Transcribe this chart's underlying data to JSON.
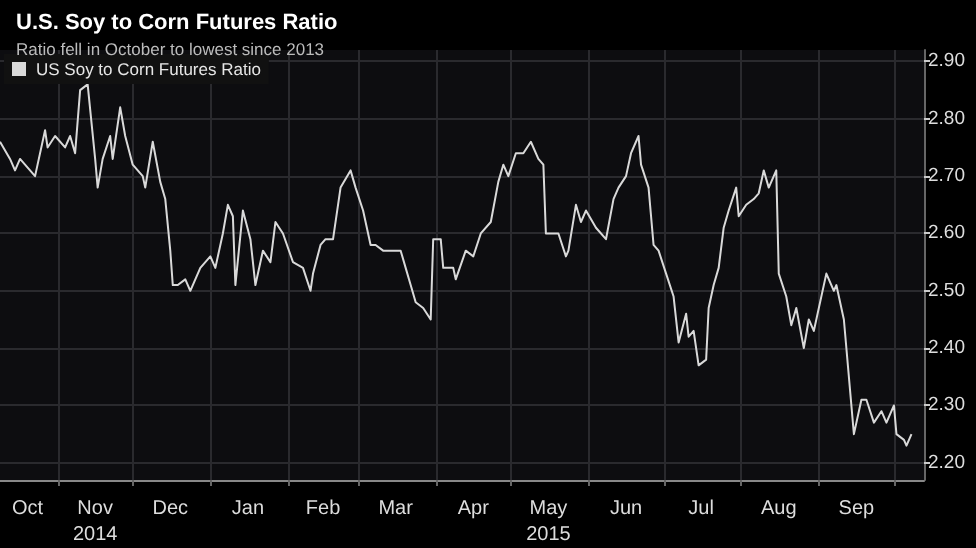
{
  "chart_data": {
    "type": "line",
    "title": "U.S. Soy to Corn Futures Ratio",
    "subtitle": "Ratio fell in October to lowest since 2013",
    "x": [
      "2014-10-09",
      "2014-10-13",
      "2014-10-15",
      "2014-10-17",
      "2014-10-19",
      "2014-10-23",
      "2014-10-27",
      "2014-10-28",
      "2014-10-31",
      "2014-11-04",
      "2014-11-06",
      "2014-11-08",
      "2014-11-10",
      "2014-11-13",
      "2014-11-16",
      "2014-11-17",
      "2014-11-19",
      "2014-11-22",
      "2014-11-23",
      "2014-11-26",
      "2014-11-28",
      "2014-12-01",
      "2014-12-05",
      "2014-12-06",
      "2014-12-09",
      "2014-12-12",
      "2014-12-14",
      "2014-12-16",
      "2014-12-17",
      "2014-12-19",
      "2014-12-22",
      "2014-12-24",
      "2014-12-28",
      "2015-01-01",
      "2015-01-03",
      "2015-01-06",
      "2015-01-08",
      "2015-01-10",
      "2015-01-11",
      "2015-01-14",
      "2015-01-17",
      "2015-01-19",
      "2015-01-22",
      "2015-01-25",
      "2015-01-27",
      "2015-01-30",
      "2015-02-03",
      "2015-02-07",
      "2015-02-10",
      "2015-02-11",
      "2015-02-14",
      "2015-02-16",
      "2015-02-19",
      "2015-02-22",
      "2015-02-26",
      "2015-02-28",
      "2015-03-03",
      "2015-03-06",
      "2015-03-08",
      "2015-03-11",
      "2015-03-14",
      "2015-03-18",
      "2015-03-20",
      "2015-03-22",
      "2015-03-24",
      "2015-03-27",
      "2015-03-30",
      "2015-03-31",
      "2015-04-03",
      "2015-04-04",
      "2015-04-08",
      "2015-04-09",
      "2015-04-13",
      "2015-04-16",
      "2015-04-19",
      "2015-04-23",
      "2015-04-26",
      "2015-04-28",
      "2015-04-30",
      "2015-05-03",
      "2015-05-06",
      "2015-05-09",
      "2015-05-12",
      "2015-05-14",
      "2015-05-15",
      "2015-05-18",
      "2015-05-20",
      "2015-05-23",
      "2015-05-24",
      "2015-05-27",
      "2015-05-29",
      "2015-05-31",
      "2015-06-04",
      "2015-06-08",
      "2015-06-11",
      "2015-06-13",
      "2015-06-16",
      "2015-06-18",
      "2015-06-21",
      "2015-06-22",
      "2015-06-25",
      "2015-06-27",
      "2015-06-29",
      "2015-07-02",
      "2015-07-05",
      "2015-07-07",
      "2015-07-10",
      "2015-07-11",
      "2015-07-13",
      "2015-07-15",
      "2015-07-18",
      "2015-07-19",
      "2015-07-21",
      "2015-07-23",
      "2015-07-25",
      "2015-07-27",
      "2015-07-30",
      "2015-07-31",
      "2015-08-03",
      "2015-08-06",
      "2015-08-08",
      "2015-08-10",
      "2015-08-12",
      "2015-08-15",
      "2015-08-16",
      "2015-08-19",
      "2015-08-21",
      "2015-08-23",
      "2015-08-26",
      "2015-08-28",
      "2015-08-30",
      "2015-09-04",
      "2015-09-07",
      "2015-09-08",
      "2015-09-11",
      "2015-09-15",
      "2015-09-18",
      "2015-09-20",
      "2015-09-23",
      "2015-09-26",
      "2015-09-28",
      "2015-10-01",
      "2015-10-02",
      "2015-10-05",
      "2015-10-06",
      "2015-10-08"
    ],
    "series": [
      {
        "name": "US Soy to Corn Futures Ratio",
        "color": "#d9d9d9",
        "values": [
          2.76,
          2.73,
          2.71,
          2.73,
          2.72,
          2.7,
          2.78,
          2.75,
          2.77,
          2.75,
          2.77,
          2.74,
          2.85,
          2.86,
          2.73,
          2.68,
          2.73,
          2.77,
          2.73,
          2.82,
          2.77,
          2.72,
          2.7,
          2.68,
          2.76,
          2.69,
          2.66,
          2.57,
          2.51,
          2.51,
          2.52,
          2.5,
          2.54,
          2.56,
          2.54,
          2.6,
          2.65,
          2.63,
          2.51,
          2.64,
          2.59,
          2.51,
          2.57,
          2.55,
          2.62,
          2.6,
          2.55,
          2.54,
          2.5,
          2.53,
          2.58,
          2.59,
          2.59,
          2.68,
          2.71,
          2.68,
          2.64,
          2.58,
          2.58,
          2.57,
          2.57,
          2.57,
          2.54,
          2.51,
          2.48,
          2.47,
          2.45,
          2.59,
          2.59,
          2.54,
          2.54,
          2.52,
          2.57,
          2.56,
          2.6,
          2.62,
          2.69,
          2.72,
          2.7,
          2.74,
          2.74,
          2.76,
          2.73,
          2.72,
          2.6,
          2.6,
          2.6,
          2.56,
          2.57,
          2.65,
          2.62,
          2.64,
          2.61,
          2.59,
          2.66,
          2.68,
          2.7,
          2.74,
          2.77,
          2.72,
          2.68,
          2.58,
          2.57,
          2.53,
          2.49,
          2.41,
          2.46,
          2.42,
          2.43,
          2.37,
          2.38,
          2.47,
          2.51,
          2.54,
          2.61,
          2.64,
          2.68,
          2.63,
          2.65,
          2.66,
          2.67,
          2.71,
          2.68,
          2.71,
          2.53,
          2.49,
          2.44,
          2.47,
          2.4,
          2.45,
          2.43,
          2.53,
          2.5,
          2.51,
          2.45,
          2.25,
          2.31,
          2.31,
          2.27,
          2.29,
          2.27,
          2.3,
          2.25,
          2.24,
          2.23,
          2.25
        ]
      }
    ],
    "xlim": [
      "2014-10-09",
      "2015-10-13"
    ],
    "xticks": [
      {
        "value": "2014-10-20",
        "label": "Oct"
      },
      {
        "value": "2014-11-01",
        "label": null
      },
      {
        "value": "2014-11-16",
        "label": "Nov\n2014"
      },
      {
        "value": "2014-12-01",
        "label": null
      },
      {
        "value": "2014-12-16",
        "label": "Dec"
      },
      {
        "value": "2015-01-01",
        "label": null
      },
      {
        "value": "2015-01-16",
        "label": "Jan"
      },
      {
        "value": "2015-02-01",
        "label": null
      },
      {
        "value": "2015-02-15",
        "label": "Feb"
      },
      {
        "value": "2015-03-01",
        "label": null
      },
      {
        "value": "2015-03-16",
        "label": "Mar"
      },
      {
        "value": "2015-04-01",
        "label": null
      },
      {
        "value": "2015-04-16",
        "label": "Apr"
      },
      {
        "value": "2015-05-01",
        "label": null
      },
      {
        "value": "2015-05-16",
        "label": "May\n2015"
      },
      {
        "value": "2015-06-01",
        "label": null
      },
      {
        "value": "2015-06-16",
        "label": "Jun"
      },
      {
        "value": "2015-07-01",
        "label": null
      },
      {
        "value": "2015-07-16",
        "label": "Jul"
      },
      {
        "value": "2015-08-01",
        "label": null
      },
      {
        "value": "2015-08-16",
        "label": "Aug"
      },
      {
        "value": "2015-09-01",
        "label": null
      },
      {
        "value": "2015-09-16",
        "label": "Sep"
      },
      {
        "value": "2015-10-01",
        "label": null
      }
    ],
    "ylim": [
      2.17,
      2.92
    ],
    "yticks": [
      {
        "value": 2.2,
        "label": "2.20"
      },
      {
        "value": 2.3,
        "label": "2.30"
      },
      {
        "value": 2.4,
        "label": "2.40"
      },
      {
        "value": 2.5,
        "label": "2.50"
      },
      {
        "value": 2.6,
        "label": "2.60"
      },
      {
        "value": 2.7,
        "label": "2.70"
      },
      {
        "value": 2.8,
        "label": "2.80"
      },
      {
        "value": 2.9,
        "label": "2.90"
      }
    ],
    "grid": true,
    "legend": "top left",
    "marker": "none",
    "line_style": "solid"
  }
}
